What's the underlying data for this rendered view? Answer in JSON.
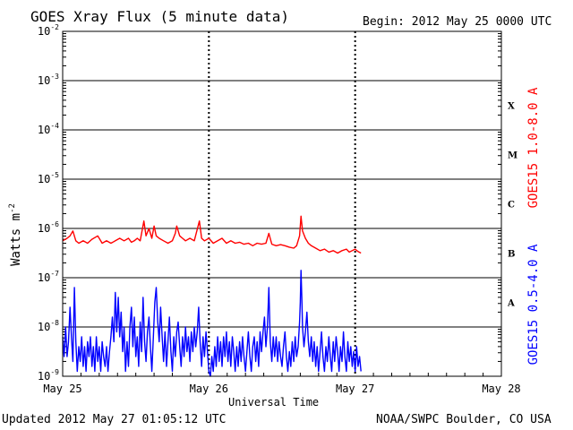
{
  "header": {
    "title": "GOES Xray Flux (5 minute data)",
    "begin": "Begin:  2012 May 25 0000 UTC"
  },
  "footer": {
    "updated": "Updated 2012 May 27 01:05:12 UTC",
    "credit": "NOAA/SWPC Boulder, CO USA"
  },
  "colors": {
    "long_channel": "#ff0000",
    "short_channel": "#0000ff",
    "grid": "#000000"
  },
  "chart_data": {
    "type": "line",
    "title": "GOES Xray Flux (5 minute data)",
    "xlabel": "Universal Time",
    "ylabel": "Watts m",
    "ylabel_superscript": "-2",
    "yscale": "log",
    "ylim": [
      1e-09,
      0.01
    ],
    "xlim_days": [
      0,
      3
    ],
    "x_unit": "days since 2012 May 25 0000 UTC",
    "x_ticks": [
      {
        "day": 0,
        "label": "May 25"
      },
      {
        "day": 1,
        "label": "May 26"
      },
      {
        "day": 2,
        "label": "May 27"
      },
      {
        "day": 3,
        "label": "May 28"
      }
    ],
    "y_ticks": [
      {
        "exp": -2,
        "label": "10",
        "sup": "-2"
      },
      {
        "exp": -3,
        "label": "10",
        "sup": "-3"
      },
      {
        "exp": -4,
        "label": "10",
        "sup": "-4"
      },
      {
        "exp": -5,
        "label": "10",
        "sup": "-5"
      },
      {
        "exp": -6,
        "label": "10",
        "sup": "-6"
      },
      {
        "exp": -7,
        "label": "10",
        "sup": "-7"
      },
      {
        "exp": -8,
        "label": "10",
        "sup": "-8"
      },
      {
        "exp": -9,
        "label": "10",
        "sup": "-9"
      }
    ],
    "flare_classes": [
      {
        "label": "X",
        "exp": -3.5
      },
      {
        "label": "M",
        "exp": -4.5
      },
      {
        "label": "C",
        "exp": -5.5
      },
      {
        "label": "B",
        "exp": -6.5
      },
      {
        "label": "A",
        "exp": -7.5
      }
    ],
    "series": [
      {
        "name": "GOES15 1.0-8.0 A",
        "color": "#ff0000",
        "log_flux": [
          [
            0.0,
            -6.25
          ],
          [
            0.03,
            -6.2
          ],
          [
            0.05,
            -6.15
          ],
          [
            0.07,
            -6.05
          ],
          [
            0.09,
            -6.25
          ],
          [
            0.11,
            -6.3
          ],
          [
            0.14,
            -6.25
          ],
          [
            0.17,
            -6.3
          ],
          [
            0.2,
            -6.22
          ],
          [
            0.24,
            -6.15
          ],
          [
            0.27,
            -6.3
          ],
          [
            0.3,
            -6.25
          ],
          [
            0.33,
            -6.3
          ],
          [
            0.36,
            -6.25
          ],
          [
            0.39,
            -6.2
          ],
          [
            0.42,
            -6.25
          ],
          [
            0.45,
            -6.2
          ],
          [
            0.47,
            -6.28
          ],
          [
            0.49,
            -6.25
          ],
          [
            0.51,
            -6.2
          ],
          [
            0.53,
            -6.25
          ],
          [
            0.555,
            -5.85
          ],
          [
            0.57,
            -6.15
          ],
          [
            0.59,
            -6.0
          ],
          [
            0.61,
            -6.2
          ],
          [
            0.625,
            -5.95
          ],
          [
            0.64,
            -6.15
          ],
          [
            0.66,
            -6.2
          ],
          [
            0.69,
            -6.25
          ],
          [
            0.72,
            -6.3
          ],
          [
            0.75,
            -6.25
          ],
          [
            0.77,
            -6.1
          ],
          [
            0.78,
            -5.95
          ],
          [
            0.8,
            -6.15
          ],
          [
            0.82,
            -6.2
          ],
          [
            0.84,
            -6.25
          ],
          [
            0.87,
            -6.2
          ],
          [
            0.9,
            -6.25
          ],
          [
            0.935,
            -5.85
          ],
          [
            0.95,
            -6.2
          ],
          [
            0.97,
            -6.25
          ],
          [
            1.0,
            -6.2
          ],
          [
            1.03,
            -6.3
          ],
          [
            1.06,
            -6.25
          ],
          [
            1.09,
            -6.2
          ],
          [
            1.12,
            -6.3
          ],
          [
            1.15,
            -6.25
          ],
          [
            1.18,
            -6.3
          ],
          [
            1.21,
            -6.28
          ],
          [
            1.24,
            -6.32
          ],
          [
            1.27,
            -6.3
          ],
          [
            1.3,
            -6.35
          ],
          [
            1.33,
            -6.3
          ],
          [
            1.36,
            -6.32
          ],
          [
            1.39,
            -6.3
          ],
          [
            1.41,
            -6.1
          ],
          [
            1.43,
            -6.32
          ],
          [
            1.46,
            -6.35
          ],
          [
            1.49,
            -6.33
          ],
          [
            1.52,
            -6.35
          ],
          [
            1.55,
            -6.38
          ],
          [
            1.58,
            -6.4
          ],
          [
            1.6,
            -6.35
          ],
          [
            1.62,
            -6.15
          ],
          [
            1.63,
            -5.75
          ],
          [
            1.64,
            -6.05
          ],
          [
            1.66,
            -6.2
          ],
          [
            1.68,
            -6.3
          ],
          [
            1.7,
            -6.35
          ],
          [
            1.73,
            -6.4
          ],
          [
            1.76,
            -6.45
          ],
          [
            1.79,
            -6.42
          ],
          [
            1.82,
            -6.48
          ],
          [
            1.85,
            -6.45
          ],
          [
            1.88,
            -6.5
          ],
          [
            1.91,
            -6.45
          ],
          [
            1.94,
            -6.42
          ],
          [
            1.96,
            -6.48
          ],
          [
            1.98,
            -6.45
          ],
          [
            2.0,
            -6.42
          ],
          [
            2.02,
            -6.47
          ],
          [
            2.04,
            -6.5
          ]
        ]
      },
      {
        "name": "GOES15 0.5-4.0 A",
        "color": "#0000ff",
        "log_flux": [
          [
            0.0,
            -8.2
          ],
          [
            0.01,
            -8.6
          ],
          [
            0.02,
            -8.0
          ],
          [
            0.03,
            -8.6
          ],
          [
            0.04,
            -8.3
          ],
          [
            0.05,
            -7.6
          ],
          [
            0.06,
            -8.2
          ],
          [
            0.07,
            -8.7
          ],
          [
            0.08,
            -7.2
          ],
          [
            0.09,
            -8.3
          ],
          [
            0.1,
            -8.9
          ],
          [
            0.11,
            -8.4
          ],
          [
            0.12,
            -8.7
          ],
          [
            0.13,
            -8.2
          ],
          [
            0.14,
            -8.8
          ],
          [
            0.15,
            -8.4
          ],
          [
            0.16,
            -8.9
          ],
          [
            0.17,
            -8.3
          ],
          [
            0.18,
            -8.6
          ],
          [
            0.19,
            -8.2
          ],
          [
            0.2,
            -8.8
          ],
          [
            0.21,
            -8.4
          ],
          [
            0.22,
            -8.9
          ],
          [
            0.23,
            -8.2
          ],
          [
            0.24,
            -8.7
          ],
          [
            0.25,
            -8.4
          ],
          [
            0.26,
            -8.9
          ],
          [
            0.27,
            -8.3
          ],
          [
            0.28,
            -8.6
          ],
          [
            0.29,
            -8.8
          ],
          [
            0.3,
            -8.4
          ],
          [
            0.31,
            -8.9
          ],
          [
            0.32,
            -8.5
          ],
          [
            0.33,
            -8.2
          ],
          [
            0.34,
            -7.8
          ],
          [
            0.35,
            -8.3
          ],
          [
            0.36,
            -7.3
          ],
          [
            0.37,
            -8.1
          ],
          [
            0.38,
            -7.4
          ],
          [
            0.39,
            -8.2
          ],
          [
            0.4,
            -7.7
          ],
          [
            0.41,
            -8.5
          ],
          [
            0.42,
            -8.0
          ],
          [
            0.43,
            -8.9
          ],
          [
            0.44,
            -8.3
          ],
          [
            0.45,
            -8.8
          ],
          [
            0.46,
            -8.0
          ],
          [
            0.47,
            -7.6
          ],
          [
            0.48,
            -8.4
          ],
          [
            0.49,
            -7.8
          ],
          [
            0.5,
            -8.6
          ],
          [
            0.51,
            -8.2
          ],
          [
            0.52,
            -8.8
          ],
          [
            0.53,
            -7.9
          ],
          [
            0.54,
            -8.5
          ],
          [
            0.55,
            -7.4
          ],
          [
            0.56,
            -8.3
          ],
          [
            0.57,
            -8.7
          ],
          [
            0.58,
            -8.1
          ],
          [
            0.59,
            -7.8
          ],
          [
            0.6,
            -8.4
          ],
          [
            0.61,
            -8.9
          ],
          [
            0.62,
            -8.2
          ],
          [
            0.63,
            -7.5
          ],
          [
            0.64,
            -7.2
          ],
          [
            0.65,
            -7.9
          ],
          [
            0.66,
            -8.3
          ],
          [
            0.67,
            -7.6
          ],
          [
            0.68,
            -8.2
          ],
          [
            0.69,
            -8.7
          ],
          [
            0.7,
            -8.1
          ],
          [
            0.71,
            -8.8
          ],
          [
            0.72,
            -8.3
          ],
          [
            0.73,
            -7.8
          ],
          [
            0.74,
            -8.5
          ],
          [
            0.75,
            -8.9
          ],
          [
            0.76,
            -8.2
          ],
          [
            0.77,
            -8.6
          ],
          [
            0.78,
            -8.1
          ],
          [
            0.79,
            -7.9
          ],
          [
            0.8,
            -8.4
          ],
          [
            0.81,
            -8.8
          ],
          [
            0.82,
            -8.2
          ],
          [
            0.83,
            -8.6
          ],
          [
            0.84,
            -8.0
          ],
          [
            0.85,
            -8.5
          ],
          [
            0.86,
            -8.2
          ],
          [
            0.87,
            -8.7
          ],
          [
            0.88,
            -8.1
          ],
          [
            0.89,
            -8.5
          ],
          [
            0.9,
            -8.0
          ],
          [
            0.91,
            -8.4
          ],
          [
            0.92,
            -8.1
          ],
          [
            0.93,
            -7.6
          ],
          [
            0.94,
            -8.3
          ],
          [
            0.95,
            -8.8
          ],
          [
            0.96,
            -8.2
          ],
          [
            0.97,
            -8.6
          ],
          [
            0.98,
            -8.1
          ],
          [
            0.99,
            -8.5
          ],
          [
            1.0,
            -8.9
          ],
          [
            1.01,
            -9.0
          ],
          [
            1.02,
            -8.6
          ],
          [
            1.03,
            -8.9
          ],
          [
            1.04,
            -8.4
          ],
          [
            1.05,
            -8.8
          ],
          [
            1.06,
            -8.2
          ],
          [
            1.07,
            -8.7
          ],
          [
            1.08,
            -8.3
          ],
          [
            1.09,
            -8.8
          ],
          [
            1.1,
            -8.2
          ],
          [
            1.11,
            -8.6
          ],
          [
            1.12,
            -8.1
          ],
          [
            1.13,
            -8.7
          ],
          [
            1.14,
            -8.3
          ],
          [
            1.15,
            -8.8
          ],
          [
            1.16,
            -8.2
          ],
          [
            1.17,
            -8.5
          ],
          [
            1.18,
            -8.9
          ],
          [
            1.19,
            -8.4
          ],
          [
            1.2,
            -8.8
          ],
          [
            1.21,
            -8.3
          ],
          [
            1.22,
            -8.7
          ],
          [
            1.23,
            -8.2
          ],
          [
            1.24,
            -8.6
          ],
          [
            1.25,
            -8.9
          ],
          [
            1.26,
            -8.5
          ],
          [
            1.27,
            -8.1
          ],
          [
            1.28,
            -8.6
          ],
          [
            1.29,
            -8.9
          ],
          [
            1.3,
            -8.4
          ],
          [
            1.31,
            -8.2
          ],
          [
            1.32,
            -8.7
          ],
          [
            1.33,
            -8.3
          ],
          [
            1.34,
            -8.8
          ],
          [
            1.35,
            -8.1
          ],
          [
            1.36,
            -8.5
          ],
          [
            1.37,
            -8.1
          ],
          [
            1.38,
            -7.8
          ],
          [
            1.39,
            -8.4
          ],
          [
            1.4,
            -8.0
          ],
          [
            1.41,
            -7.2
          ],
          [
            1.42,
            -8.3
          ],
          [
            1.43,
            -8.7
          ],
          [
            1.44,
            -8.2
          ],
          [
            1.45,
            -8.6
          ],
          [
            1.46,
            -8.2
          ],
          [
            1.47,
            -8.7
          ],
          [
            1.48,
            -8.3
          ],
          [
            1.49,
            -8.6
          ],
          [
            1.5,
            -8.8
          ],
          [
            1.51,
            -8.4
          ],
          [
            1.52,
            -8.1
          ],
          [
            1.53,
            -8.6
          ],
          [
            1.54,
            -8.9
          ],
          [
            1.55,
            -8.5
          ],
          [
            1.56,
            -8.8
          ],
          [
            1.57,
            -8.3
          ],
          [
            1.58,
            -8.7
          ],
          [
            1.59,
            -8.2
          ],
          [
            1.6,
            -8.6
          ],
          [
            1.61,
            -8.4
          ],
          [
            1.62,
            -7.9
          ],
          [
            1.625,
            -7.5
          ],
          [
            1.63,
            -6.85
          ],
          [
            1.635,
            -7.4
          ],
          [
            1.64,
            -8.0
          ],
          [
            1.65,
            -8.4
          ],
          [
            1.66,
            -8.1
          ],
          [
            1.67,
            -7.7
          ],
          [
            1.68,
            -8.3
          ],
          [
            1.69,
            -8.6
          ],
          [
            1.7,
            -8.2
          ],
          [
            1.71,
            -8.7
          ],
          [
            1.72,
            -8.3
          ],
          [
            1.73,
            -8.8
          ],
          [
            1.74,
            -8.4
          ],
          [
            1.75,
            -8.9
          ],
          [
            1.76,
            -8.5
          ],
          [
            1.77,
            -8.1
          ],
          [
            1.78,
            -8.6
          ],
          [
            1.79,
            -8.9
          ],
          [
            1.8,
            -8.4
          ],
          [
            1.81,
            -8.7
          ],
          [
            1.82,
            -8.2
          ],
          [
            1.83,
            -8.6
          ],
          [
            1.84,
            -8.9
          ],
          [
            1.85,
            -8.3
          ],
          [
            1.86,
            -8.7
          ],
          [
            1.87,
            -8.2
          ],
          [
            1.88,
            -8.5
          ],
          [
            1.89,
            -8.9
          ],
          [
            1.9,
            -8.4
          ],
          [
            1.91,
            -8.7
          ],
          [
            1.92,
            -8.1
          ],
          [
            1.93,
            -8.6
          ],
          [
            1.94,
            -8.9
          ],
          [
            1.95,
            -8.3
          ],
          [
            1.96,
            -8.7
          ],
          [
            1.97,
            -8.4
          ],
          [
            1.98,
            -8.8
          ],
          [
            1.99,
            -8.5
          ],
          [
            2.0,
            -8.9
          ],
          [
            2.01,
            -8.4
          ],
          [
            2.02,
            -8.8
          ],
          [
            2.03,
            -8.6
          ],
          [
            2.04,
            -8.9
          ]
        ]
      }
    ]
  }
}
